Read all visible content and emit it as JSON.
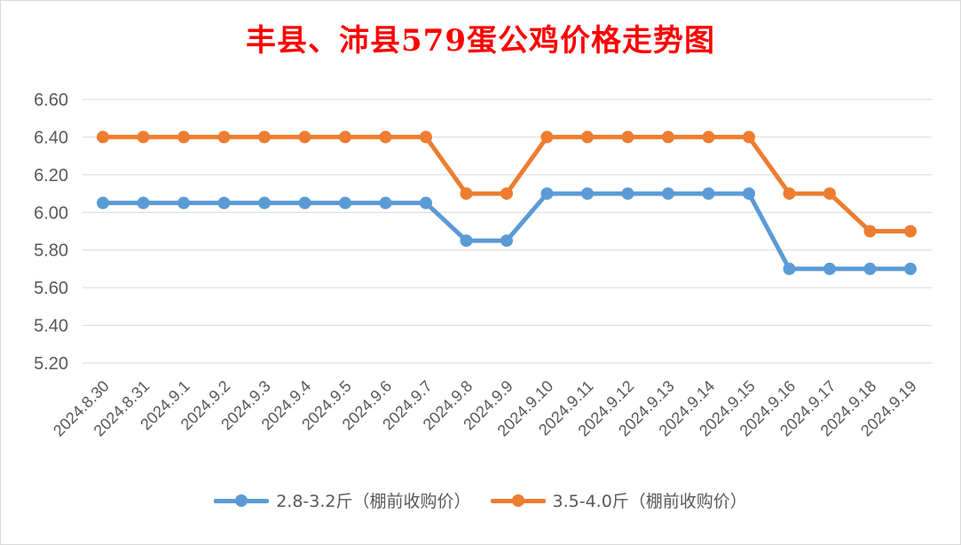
{
  "colors": {
    "series1": "#5b9bd5",
    "series2": "#ed7d31",
    "title": "#ff0000",
    "grid": "#d9d9d9",
    "tick": "#595959"
  },
  "chart_data": {
    "type": "line",
    "title": "丰县、沛县579蛋公鸡价格走势图",
    "xlabel": "",
    "ylabel": "",
    "ylim": [
      5.2,
      6.6
    ],
    "yticks": [
      "5.20",
      "5.40",
      "5.60",
      "5.80",
      "6.00",
      "6.20",
      "6.40",
      "6.60"
    ],
    "grid": true,
    "legend_position": "bottom",
    "categories": [
      "2024.8.30",
      "2024.8.31",
      "2024.9.1",
      "2024.9.2",
      "2024.9.3",
      "2024.9.4",
      "2024.9.5",
      "2024.9.6",
      "2024.9.7",
      "2024.9.8",
      "2024.9.9",
      "2024.9.10",
      "2024.9.11",
      "2024.9.12",
      "2024.9.13",
      "2024.9.14",
      "2024.9.15",
      "2024.9.16",
      "2024.9.17",
      "2024.9.18",
      "2024.9.19"
    ],
    "series": [
      {
        "name": "2.8-3.2斤（棚前收购价）",
        "values": [
          6.05,
          6.05,
          6.05,
          6.05,
          6.05,
          6.05,
          6.05,
          6.05,
          6.05,
          5.85,
          5.85,
          6.1,
          6.1,
          6.1,
          6.1,
          6.1,
          6.1,
          5.7,
          5.7,
          5.7,
          5.7
        ]
      },
      {
        "name": "3.5-4.0斤（棚前收购价）",
        "values": [
          6.4,
          6.4,
          6.4,
          6.4,
          6.4,
          6.4,
          6.4,
          6.4,
          6.4,
          6.1,
          6.1,
          6.4,
          6.4,
          6.4,
          6.4,
          6.4,
          6.4,
          6.1,
          6.1,
          5.9,
          5.9
        ]
      }
    ]
  }
}
